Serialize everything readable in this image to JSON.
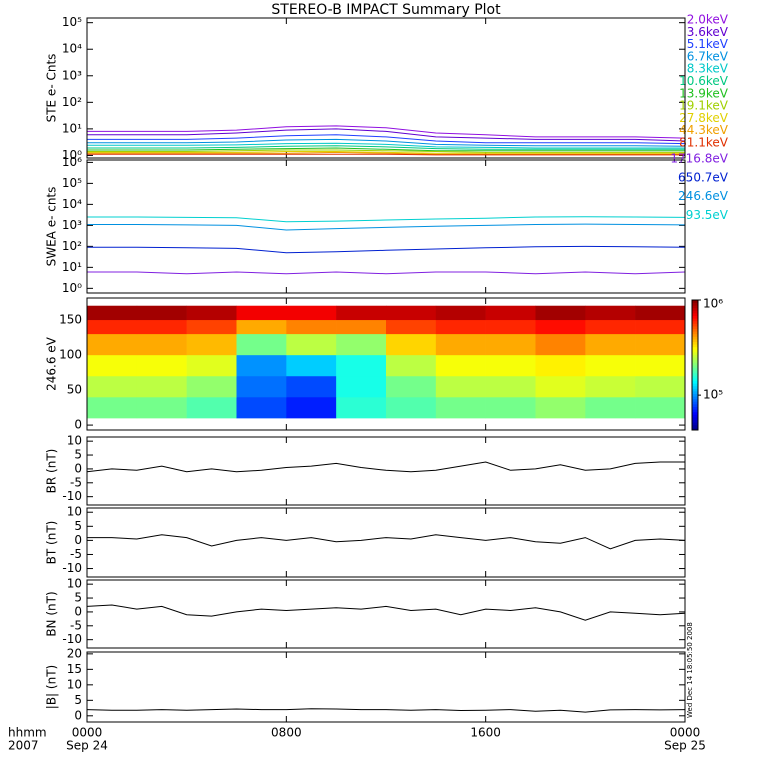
{
  "chart_data": [
    {
      "type": "line",
      "title": "STEREO-B IMPACT Summary Plot",
      "ylabel": "STE e- Cnts",
      "log": true,
      "ylim": [
        0.8,
        150000
      ],
      "yticks": [
        {
          "value": 1,
          "label": "10⁰"
        },
        {
          "value": 10,
          "label": "10¹"
        },
        {
          "value": 100,
          "label": "10²"
        },
        {
          "value": 1000,
          "label": "10³"
        },
        {
          "value": 10000,
          "label": "10⁴"
        },
        {
          "value": 100000,
          "label": "10⁵"
        }
      ],
      "xlim": [
        0,
        24
      ],
      "x": [
        0,
        2,
        4,
        6,
        8,
        10,
        12,
        14,
        16,
        18,
        20,
        22,
        24
      ],
      "series": [
        {
          "name": "2.0keV",
          "color": "#9010e0",
          "values": [
            8,
            8,
            8,
            9,
            12,
            13,
            11,
            7,
            6,
            5,
            5,
            5,
            4.5
          ]
        },
        {
          "name": "3.6keV",
          "color": "#6000d0",
          "values": [
            6,
            6,
            6,
            7,
            9,
            10,
            8,
            5,
            4.5,
            4,
            4,
            4,
            3.5
          ]
        },
        {
          "name": "5.1keV",
          "color": "#2040ff",
          "values": [
            4,
            4,
            4,
            4.5,
            5.5,
            6,
            5,
            3.5,
            3,
            3,
            3,
            3,
            2.8
          ]
        },
        {
          "name": "6.7keV",
          "color": "#0090e0",
          "values": [
            3,
            3,
            3,
            3.2,
            3.8,
            4,
            3.5,
            2.6,
            2.4,
            2.3,
            2.3,
            2.3,
            2.2
          ]
        },
        {
          "name": "8.3keV",
          "color": "#00c8c8",
          "values": [
            2.4,
            2.4,
            2.4,
            2.5,
            2.8,
            2.9,
            2.6,
            2.1,
            2,
            1.9,
            1.9,
            1.9,
            1.9
          ]
        },
        {
          "name": "10.6keV",
          "color": "#00c880",
          "values": [
            1.9,
            1.9,
            1.9,
            2,
            2.2,
            2.3,
            2.1,
            1.8,
            1.7,
            1.7,
            1.7,
            1.7,
            1.7
          ]
        },
        {
          "name": "13.9keV",
          "color": "#20c020",
          "values": [
            1.6,
            1.6,
            1.6,
            1.7,
            1.8,
            1.9,
            1.7,
            1.5,
            1.5,
            1.5,
            1.5,
            1.5,
            1.5
          ]
        },
        {
          "name": "19.1keV",
          "color": "#a0d000",
          "values": [
            1.4,
            1.4,
            1.4,
            1.5,
            1.6,
            1.6,
            1.5,
            1.4,
            1.3,
            1.3,
            1.3,
            1.3,
            1.3
          ]
        },
        {
          "name": "27.8keV",
          "color": "#e0d000",
          "values": [
            1.3,
            1.3,
            1.3,
            1.3,
            1.4,
            1.4,
            1.3,
            1.2,
            1.2,
            1.2,
            1.2,
            1.2,
            1.2
          ]
        },
        {
          "name": "44.3keV",
          "color": "#f0a000",
          "values": [
            1.2,
            1.2,
            1.2,
            1.2,
            1.2,
            1.3,
            1.2,
            1.1,
            1.1,
            1.1,
            1.1,
            1.1,
            1.1
          ]
        },
        {
          "name": "81.1keV",
          "color": "#e03000",
          "values": [
            1.1,
            1.1,
            1.1,
            1.1,
            1.1,
            1.1,
            1.1,
            1.05,
            1.05,
            1.05,
            1.05,
            1.05,
            1.05
          ]
        }
      ]
    },
    {
      "type": "line",
      "ylabel": "SWEA e- cnts",
      "log": true,
      "ylim": [
        0.6,
        1300000
      ],
      "yticks": [
        {
          "value": 1,
          "label": "10⁰"
        },
        {
          "value": 10,
          "label": "10¹"
        },
        {
          "value": 100,
          "label": "10²"
        },
        {
          "value": 1000,
          "label": "10³"
        },
        {
          "value": 10000,
          "label": "10⁴"
        },
        {
          "value": 100000,
          "label": "10⁵"
        },
        {
          "value": 1000000,
          "label": "10⁶"
        }
      ],
      "xlim": [
        0,
        24
      ],
      "x": [
        0,
        2,
        4,
        6,
        8,
        10,
        12,
        14,
        16,
        18,
        20,
        22,
        24
      ],
      "series": [
        {
          "name": "1716.8eV",
          "color": "#8020e0",
          "values": [
            6,
            6,
            5,
            6,
            5,
            6,
            5,
            6,
            6,
            5,
            6,
            5,
            6
          ]
        },
        {
          "name": "650.7eV",
          "color": "#0020d0",
          "values": [
            90,
            90,
            85,
            80,
            50,
            55,
            65,
            75,
            85,
            95,
            100,
            95,
            90
          ]
        },
        {
          "name": "246.6eV",
          "color": "#0090e0",
          "values": [
            1100,
            1100,
            1050,
            1000,
            600,
            700,
            800,
            900,
            1000,
            1100,
            1150,
            1100,
            1050
          ]
        },
        {
          "name": "93.5eV",
          "color": "#00d0d0",
          "values": [
            2500,
            2500,
            2400,
            2300,
            1500,
            1600,
            1800,
            2000,
            2200,
            2500,
            2600,
            2500,
            2400
          ]
        }
      ]
    },
    {
      "type": "heatmap",
      "ylabel": "246.6 eV",
      "ylim": [
        -7,
        181
      ],
      "yticks": [
        0,
        50,
        100,
        150
      ],
      "xlim": [
        0,
        24
      ],
      "xbins": [
        0,
        2,
        4,
        6,
        8,
        10,
        12,
        14,
        16,
        18,
        20,
        22,
        24
      ],
      "ybins": [
        10,
        40,
        70,
        100,
        130,
        150,
        170
      ],
      "z": [
        [
          200000,
          200000,
          180000,
          80000,
          70000,
          160000,
          180000,
          200000,
          200000,
          220000,
          200000,
          200000
        ],
        [
          250000,
          250000,
          220000,
          90000,
          80000,
          150000,
          200000,
          250000,
          250000,
          280000,
          260000,
          250000
        ],
        [
          300000,
          300000,
          280000,
          100000,
          120000,
          150000,
          250000,
          300000,
          300000,
          320000,
          300000,
          300000
        ],
        [
          400000,
          400000,
          380000,
          200000,
          250000,
          220000,
          350000,
          400000,
          400000,
          450000,
          400000,
          400000
        ],
        [
          600000,
          600000,
          550000,
          400000,
          450000,
          450000,
          550000,
          600000,
          600000,
          650000,
          600000,
          600000
        ],
        [
          900000,
          900000,
          850000,
          700000,
          700000,
          800000,
          800000,
          850000,
          800000,
          900000,
          850000,
          900000
        ]
      ],
      "zlog": true,
      "zlim": [
        43000,
        1000000
      ],
      "zticks": [
        {
          "value": 100000,
          "label": "10⁵"
        },
        {
          "value": 1000000,
          "label": "10⁶"
        }
      ]
    },
    {
      "type": "line",
      "ylabel": "BR (nT)",
      "ylim": [
        -13,
        11.5
      ],
      "yticks": [
        -10,
        -5,
        0,
        5,
        10
      ],
      "xlim": [
        0,
        24
      ],
      "x": [
        0,
        1,
        2,
        3,
        4,
        5,
        6,
        7,
        8,
        9,
        10,
        11,
        12,
        13,
        14,
        15,
        16,
        17,
        18,
        19,
        20,
        21,
        22,
        23,
        24
      ],
      "series": [
        {
          "color": "#000000",
          "values": [
            -1,
            0,
            -0.5,
            1,
            -1,
            0,
            -1,
            -0.5,
            0.5,
            1,
            2,
            0.5,
            -0.5,
            -1,
            -0.5,
            1,
            2.5,
            -0.5,
            0,
            1.5,
            -0.5,
            0,
            2,
            2.5,
            2.5
          ]
        }
      ]
    },
    {
      "type": "line",
      "ylabel": "BT (nT)",
      "ylim": [
        -13,
        11.5
      ],
      "yticks": [
        -10,
        -5,
        0,
        5,
        10
      ],
      "xlim": [
        0,
        24
      ],
      "x": [
        0,
        1,
        2,
        3,
        4,
        5,
        6,
        7,
        8,
        9,
        10,
        11,
        12,
        13,
        14,
        15,
        16,
        17,
        18,
        19,
        20,
        21,
        22,
        23,
        24
      ],
      "series": [
        {
          "color": "#000000",
          "values": [
            1,
            1,
            0.5,
            2,
            1,
            -2,
            0,
            1,
            0,
            1,
            -0.5,
            0,
            1,
            0.5,
            2,
            1,
            0,
            1,
            -0.5,
            -1,
            1,
            -3,
            0,
            0.5,
            0
          ]
        }
      ]
    },
    {
      "type": "line",
      "ylabel": "BN (nT)",
      "ylim": [
        -13,
        11.5
      ],
      "yticks": [
        -10,
        -5,
        0,
        5,
        10
      ],
      "xlim": [
        0,
        24
      ],
      "x": [
        0,
        1,
        2,
        3,
        4,
        5,
        6,
        7,
        8,
        9,
        10,
        11,
        12,
        13,
        14,
        15,
        16,
        17,
        18,
        19,
        20,
        21,
        22,
        23,
        24
      ],
      "series": [
        {
          "color": "#000000",
          "values": [
            2,
            2.5,
            1,
            2,
            -1,
            -1.5,
            0,
            1,
            0.5,
            1,
            1.5,
            1,
            2,
            0.5,
            1,
            -1,
            1,
            0.5,
            1.5,
            0,
            -3,
            0,
            -0.5,
            -1,
            -0.5
          ]
        }
      ]
    },
    {
      "type": "line",
      "ylabel": "|B| (nT)",
      "ylim": [
        -2,
        20.6
      ],
      "yticks": [
        0,
        5,
        10,
        15,
        20
      ],
      "xlim": [
        0,
        24
      ],
      "x": [
        0,
        1,
        2,
        3,
        4,
        5,
        6,
        7,
        8,
        9,
        10,
        11,
        12,
        13,
        14,
        15,
        16,
        17,
        18,
        19,
        20,
        21,
        22,
        23,
        24
      ],
      "series": [
        {
          "color": "#000000",
          "values": [
            2,
            1.8,
            1.8,
            2,
            1.8,
            2,
            2.2,
            2,
            2,
            2.3,
            2.2,
            2,
            2,
            1.8,
            2,
            1.7,
            1.8,
            2,
            1.5,
            1.8,
            1.2,
            1.9,
            2,
            1.9,
            2
          ]
        }
      ],
      "xticks": [
        {
          "value": 0,
          "label": "0000"
        },
        {
          "value": 8,
          "label": "0800"
        },
        {
          "value": 16,
          "label": "1600"
        },
        {
          "value": 24,
          "label": "0000"
        }
      ],
      "x_unit_label": "hhmm",
      "year_label": "2007",
      "date_labels": [
        {
          "value": 0,
          "label": "Sep 24"
        },
        {
          "value": 24,
          "label": "Sep 25"
        }
      ],
      "timestamp": "Wed Dec 14 18:05:50 2008"
    }
  ]
}
